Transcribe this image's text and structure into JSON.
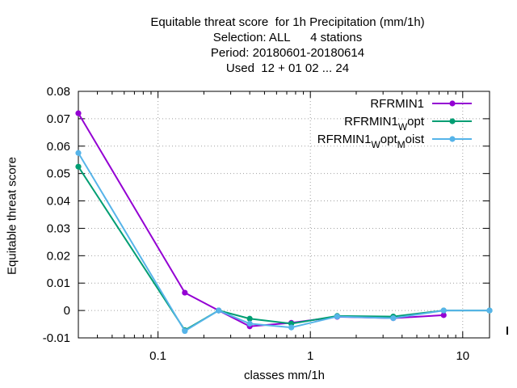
{
  "chart_data": {
    "type": "line",
    "title_lines": [
      "Equitable threat score  for 1h Precipitation (mm/1h)",
      "Selection: ALL      4 stations",
      "Period: 20180601-20180614",
      "Used  12 + 01 02 ... 24"
    ],
    "xlabel": "classes mm/1h",
    "ylabel": "Equitable threat score",
    "x_scale": "log",
    "xlim": [
      0.03,
      15
    ],
    "ylim": [
      -0.01,
      0.08
    ],
    "x_ticks": [
      {
        "value": 0.1,
        "label": "0.1"
      },
      {
        "value": 1,
        "label": "1"
      },
      {
        "value": 10,
        "label": "10"
      }
    ],
    "y_ticks": [
      {
        "value": 0.08,
        "label": "0.08"
      },
      {
        "value": 0.07,
        "label": "0.07"
      },
      {
        "value": 0.06,
        "label": "0.06"
      },
      {
        "value": 0.05,
        "label": "0.05"
      },
      {
        "value": 0.04,
        "label": "0.04"
      },
      {
        "value": 0.03,
        "label": "0.03"
      },
      {
        "value": 0.02,
        "label": "0.02"
      },
      {
        "value": 0.01,
        "label": "0.01"
      },
      {
        "value": 0,
        "label": "0"
      },
      {
        "value": -0.01,
        "label": "-0.01"
      }
    ],
    "grid": true,
    "legend_position": "top-right",
    "series": [
      {
        "name": "RFRMIN1",
        "legend_main": "RFRMIN1",
        "legend_sub": [],
        "color": "#9400d3",
        "x": [
          0.03,
          0.15,
          0.25,
          0.4,
          0.75,
          1.5,
          3.5,
          7.5
        ],
        "y": [
          0.072,
          0.0065,
          0.0,
          -0.0058,
          -0.0045,
          -0.0023,
          -0.0028,
          -0.0017
        ]
      },
      {
        "name": "RFRMIN1_W opt",
        "legend_main": "RFRMIN1",
        "legend_sub": [
          "W",
          "opt"
        ],
        "color": "#009e73",
        "x": [
          0.03,
          0.15,
          0.25,
          0.4,
          0.75,
          1.5,
          3.5,
          7.5,
          15
        ],
        "y": [
          0.0525,
          -0.0072,
          0.0,
          -0.003,
          -0.0048,
          -0.002,
          -0.0022,
          0.0,
          0.0
        ]
      },
      {
        "name": "RFRMIN1_W opt_M oist",
        "legend_main": "RFRMIN1",
        "legend_sub": [
          "W",
          "opt",
          "M",
          "oist"
        ],
        "color": "#56b4e9",
        "x": [
          0.03,
          0.15,
          0.25,
          0.4,
          0.75,
          1.5,
          3.5,
          7.5,
          15
        ],
        "y": [
          0.0575,
          -0.0075,
          0.0,
          -0.0048,
          -0.0062,
          -0.0022,
          -0.0028,
          0.0,
          0.0
        ]
      }
    ]
  }
}
